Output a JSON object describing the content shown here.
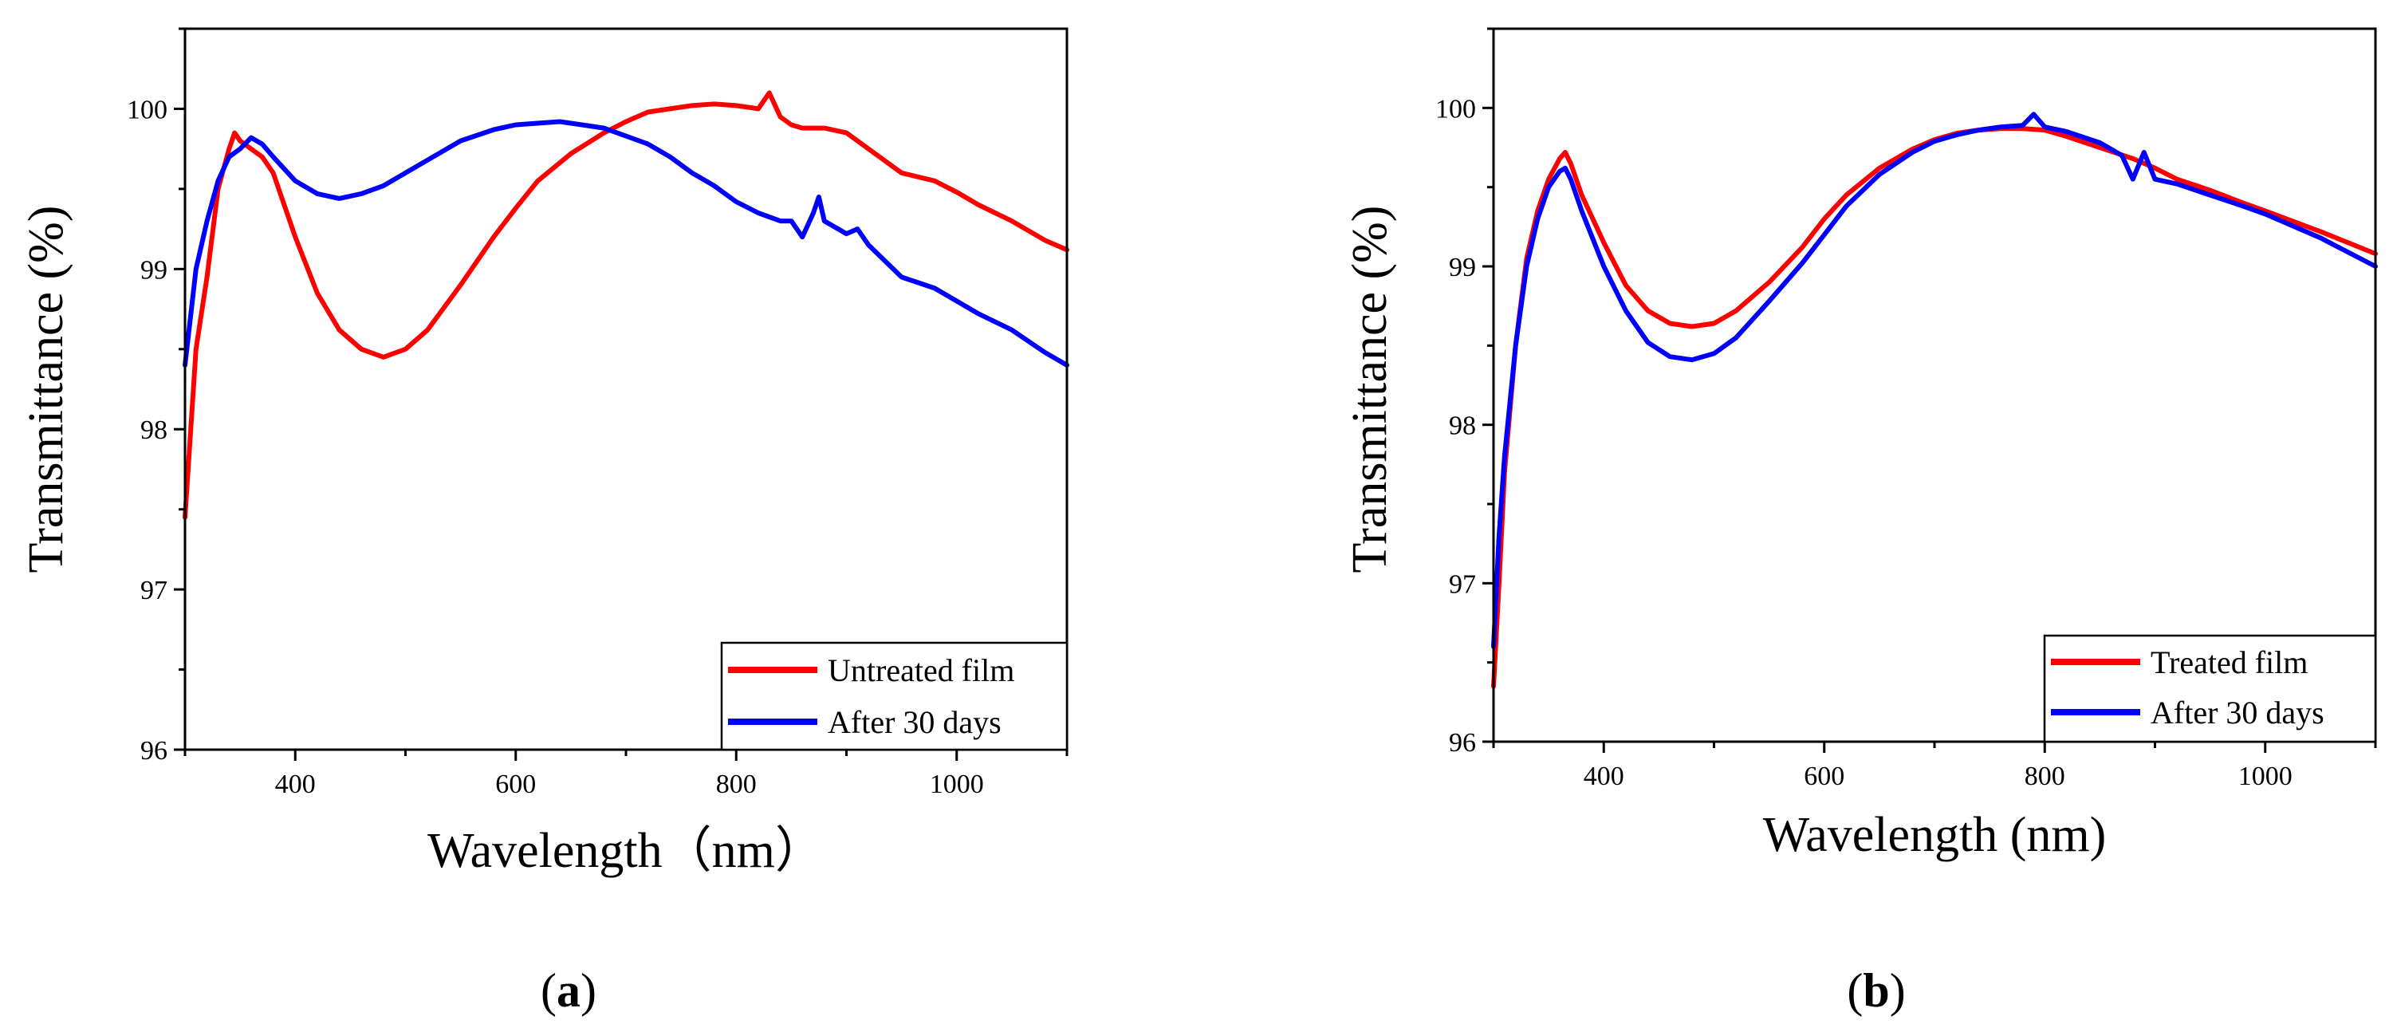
{
  "figure": {
    "panels": [
      {
        "open": "(",
        "letter": "a",
        "close": ")"
      },
      {
        "open": "(",
        "letter": "b",
        "close": ")"
      }
    ]
  },
  "chart_data": [
    {
      "type": "line",
      "title": "",
      "xlabel": "Wavelength（nm）",
      "ylabel": "Transmittance (%)",
      "xlim": [
        300,
        1100
      ],
      "ylim": [
        96,
        100.5
      ],
      "xticks": [
        400,
        600,
        800,
        1000
      ],
      "yticks": [
        96,
        97,
        98,
        99,
        100
      ],
      "grid": false,
      "legend_position": "bottom-right",
      "series": [
        {
          "name": "Untreated film",
          "color": "#ff0000",
          "x": [
            300,
            310,
            320,
            330,
            340,
            345,
            350,
            360,
            370,
            380,
            400,
            420,
            440,
            460,
            480,
            500,
            520,
            550,
            580,
            600,
            620,
            650,
            680,
            700,
            720,
            740,
            760,
            780,
            800,
            820,
            830,
            840,
            850,
            860,
            880,
            900,
            920,
            950,
            980,
            1000,
            1020,
            1050,
            1080,
            1100
          ],
          "y": [
            97.45,
            98.5,
            98.95,
            99.5,
            99.75,
            99.85,
            99.8,
            99.75,
            99.7,
            99.6,
            99.2,
            98.85,
            98.62,
            98.5,
            98.45,
            98.5,
            98.62,
            98.9,
            99.2,
            99.38,
            99.55,
            99.72,
            99.85,
            99.92,
            99.98,
            100.0,
            100.02,
            100.03,
            100.02,
            100.0,
            100.1,
            99.95,
            99.9,
            99.88,
            99.88,
            99.85,
            99.75,
            99.6,
            99.55,
            99.48,
            99.4,
            99.3,
            99.18,
            99.12
          ]
        },
        {
          "name": "After 30 days",
          "color": "#0000ff",
          "x": [
            300,
            310,
            320,
            330,
            340,
            350,
            360,
            370,
            380,
            400,
            420,
            440,
            460,
            480,
            500,
            520,
            550,
            580,
            600,
            620,
            640,
            660,
            680,
            700,
            720,
            740,
            760,
            780,
            800,
            820,
            840,
            850,
            860,
            870,
            875,
            880,
            900,
            910,
            920,
            950,
            980,
            1000,
            1020,
            1050,
            1080,
            1100
          ],
          "y": [
            98.4,
            99.0,
            99.3,
            99.55,
            99.7,
            99.75,
            99.82,
            99.78,
            99.7,
            99.55,
            99.47,
            99.44,
            99.47,
            99.52,
            99.6,
            99.68,
            99.8,
            99.87,
            99.9,
            99.91,
            99.92,
            99.9,
            99.88,
            99.83,
            99.78,
            99.7,
            99.6,
            99.52,
            99.42,
            99.35,
            99.3,
            99.3,
            99.2,
            99.35,
            99.45,
            99.3,
            99.22,
            99.25,
            99.15,
            98.95,
            98.88,
            98.8,
            98.72,
            98.62,
            98.48,
            98.4
          ]
        }
      ]
    },
    {
      "type": "line",
      "title": "",
      "xlabel": "Wavelength (nm)",
      "ylabel": "Transmittance (%)",
      "xlim": [
        300,
        1100
      ],
      "ylim": [
        96,
        100.5
      ],
      "xticks": [
        400,
        600,
        800,
        1000
      ],
      "yticks": [
        96,
        97,
        98,
        99,
        100
      ],
      "grid": false,
      "legend_position": "bottom-right",
      "series": [
        {
          "name": "Treated film",
          "color": "#ff0000",
          "x": [
            300,
            305,
            310,
            320,
            330,
            340,
            350,
            360,
            365,
            370,
            380,
            400,
            420,
            440,
            460,
            480,
            500,
            520,
            550,
            580,
            600,
            620,
            650,
            680,
            700,
            720,
            740,
            760,
            780,
            800,
            820,
            850,
            880,
            900,
            920,
            950,
            980,
            1000,
            1050,
            1100
          ],
          "y": [
            96.35,
            97.0,
            97.7,
            98.5,
            99.05,
            99.35,
            99.55,
            99.68,
            99.72,
            99.65,
            99.45,
            99.15,
            98.88,
            98.72,
            98.64,
            98.62,
            98.64,
            98.72,
            98.9,
            99.12,
            99.3,
            99.45,
            99.62,
            99.74,
            99.8,
            99.84,
            99.86,
            99.87,
            99.87,
            99.86,
            99.82,
            99.75,
            99.68,
            99.62,
            99.55,
            99.48,
            99.4,
            99.35,
            99.22,
            99.08
          ]
        },
        {
          "name": "After 30 days",
          "color": "#0000ff",
          "x": [
            300,
            305,
            310,
            320,
            330,
            340,
            350,
            360,
            365,
            370,
            380,
            400,
            420,
            440,
            460,
            480,
            500,
            520,
            550,
            580,
            600,
            620,
            650,
            680,
            700,
            720,
            740,
            760,
            780,
            790,
            800,
            820,
            850,
            870,
            880,
            890,
            900,
            920,
            950,
            980,
            1000,
            1050,
            1100
          ],
          "y": [
            96.6,
            97.3,
            97.8,
            98.5,
            99.0,
            99.3,
            99.5,
            99.6,
            99.62,
            99.55,
            99.35,
            99.0,
            98.72,
            98.52,
            98.43,
            98.41,
            98.45,
            98.55,
            98.78,
            99.02,
            99.2,
            99.38,
            99.58,
            99.72,
            99.79,
            99.83,
            99.86,
            99.88,
            99.89,
            99.96,
            99.88,
            99.85,
            99.78,
            99.7,
            99.55,
            99.72,
            99.55,
            99.52,
            99.45,
            99.38,
            99.33,
            99.18,
            99.0
          ]
        }
      ]
    }
  ]
}
